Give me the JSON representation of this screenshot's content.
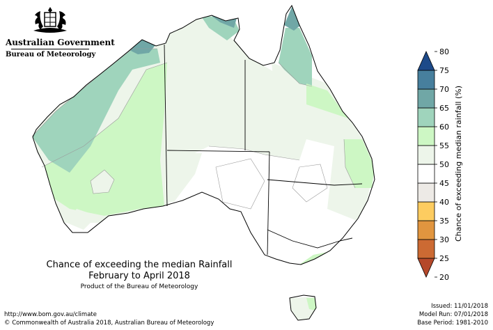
{
  "header": {
    "gov_name": "Australian Government",
    "agency": "Bureau of Meteorology"
  },
  "map": {
    "title_line1": "Chance of exceeding the median Rainfall",
    "title_line2": "February to April 2018",
    "product_note": "Product of the Bureau of Meteorology"
  },
  "legend": {
    "label": "Chance of exceeding median rainfall (%)",
    "ticks": [
      "20",
      "25",
      "30",
      "35",
      "40",
      "45",
      "50",
      "55",
      "60",
      "65",
      "70",
      "75",
      "80"
    ],
    "colors": [
      "#b5482a",
      "#cc6a33",
      "#e1953f",
      "#fdcc60",
      "#edeae6",
      "#ffffff",
      "#edf5ea",
      "#cdf7c4",
      "#9fd4bc",
      "#70a7a6",
      "#477f9d",
      "#1d4a89"
    ]
  },
  "footer": {
    "url": "http://www.bom.gov.au/climate",
    "copyright": "© Commonwealth of Australia 2018, Australian Bureau of Meteorology",
    "issued": "Issued: 11/01/2018",
    "model_run": "Model Run: 07/01/2018",
    "base_period": "Base Period: 1981-2010"
  }
}
